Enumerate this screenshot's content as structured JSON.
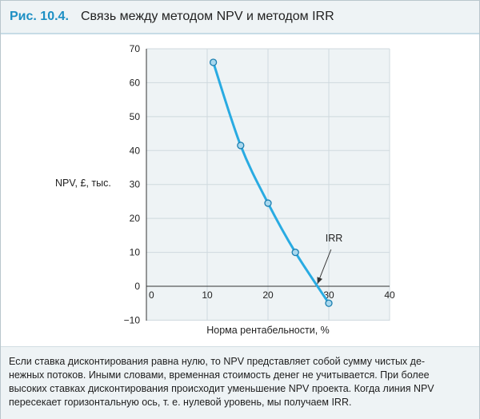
{
  "figure": {
    "number": "Рис. 10.4.",
    "title": "Связь между методом NPV и методом IRR"
  },
  "chart_data": {
    "type": "line",
    "title": "Связь между методом NPV и методом IRR",
    "xlabel": "Норма рентабельности, %",
    "ylabel": "NPV, £, тыс.",
    "xlim": [
      0,
      40
    ],
    "ylim": [
      -10,
      70
    ],
    "xticks": [
      0,
      10,
      20,
      30,
      40
    ],
    "yticks": [
      -10,
      0,
      10,
      20,
      30,
      40,
      50,
      60,
      70
    ],
    "grid": true,
    "series": [
      {
        "name": "NPV",
        "color": "#29abe2",
        "x": [
          11,
          15.5,
          20,
          24.5,
          30
        ],
        "y": [
          66,
          41.5,
          24.5,
          10,
          -5
        ]
      }
    ],
    "annotations": [
      {
        "text": "IRR",
        "x": 28,
        "y": 0
      }
    ]
  },
  "caption": {
    "lines": [
      "Если ставка дисконтирования равна нулю, то NPV представляет собой сумму чистых де-",
      "нежных потоков. Иными словами, временная стоимость денег не учитывается. При более",
      "высоких ставках дисконтирования происходит уменьшение NPV проекта. Когда линия NPV",
      "пересекает горизонтальную ось, т. е. нулевой уровень, мы получаем IRR."
    ]
  }
}
